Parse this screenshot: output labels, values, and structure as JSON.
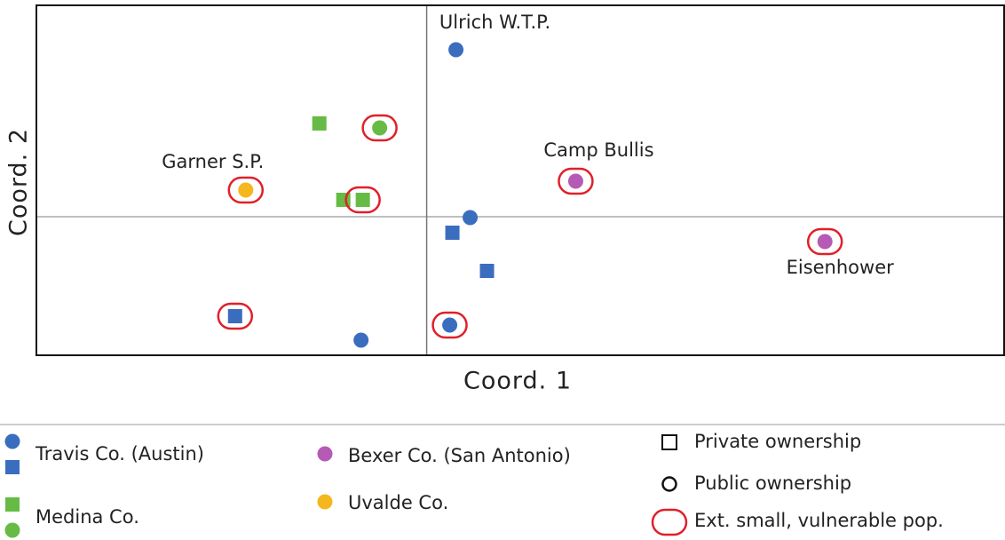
{
  "chart_data": {
    "type": "scatter",
    "xlabel": "Coord. 1",
    "ylabel": "Coord. 2",
    "xlim": [
      -4.4,
      6.51
    ],
    "ylim": [
      -1.56,
      2.38
    ],
    "highlight_color": "#e0202a",
    "highlight_label": "Ext. small, vulnerable pop.",
    "markers": [
      {
        "marker": "square",
        "label": "Private ownership"
      },
      {
        "marker": "circle",
        "label": "Public ownership"
      }
    ],
    "series": [
      {
        "name": "Travis Co. (Austin)",
        "color": "#3b6dbf",
        "x": [
          0.33,
          0.49,
          0.29,
          0.68,
          -2.16,
          -0.74,
          0.26
        ],
        "y": [
          1.88,
          -0.01,
          -0.18,
          -0.61,
          -1.12,
          -1.39,
          -1.22
        ],
        "marker": [
          "circle",
          "circle",
          "square",
          "square",
          "square",
          "circle",
          "circle"
        ],
        "highlighted": [
          false,
          false,
          false,
          false,
          true,
          false,
          true
        ]
      },
      {
        "name": "Medina Co.",
        "color": "#66bb44",
        "x": [
          -1.21,
          -0.53,
          -0.94,
          -0.72
        ],
        "y": [
          1.05,
          1.0,
          0.19,
          0.19
        ],
        "marker": [
          "square",
          "circle",
          "square",
          "square"
        ],
        "highlighted": [
          false,
          true,
          false,
          true
        ]
      },
      {
        "name": "Bexer Co. (San Antonio)",
        "color": "#b55ab5",
        "x": [
          1.68,
          4.49
        ],
        "y": [
          0.4,
          -0.28
        ],
        "marker": [
          "circle",
          "circle"
        ],
        "highlighted": [
          true,
          true
        ]
      },
      {
        "name": "Uvalde Co.",
        "color": "#f4b71e",
        "x": [
          -2.04
        ],
        "y": [
          0.3
        ],
        "marker": [
          "circle"
        ],
        "highlighted": [
          true
        ]
      }
    ],
    "annotations": [
      {
        "text": "Ulrich W.T.P.",
        "series": 0,
        "index": 0
      },
      {
        "text": "Garner S.P.",
        "series": 3,
        "index": 0
      },
      {
        "text": "Camp Bullis",
        "series": 2,
        "index": 0
      },
      {
        "text": "Eisenhower",
        "series": 2,
        "index": 1
      }
    ]
  }
}
